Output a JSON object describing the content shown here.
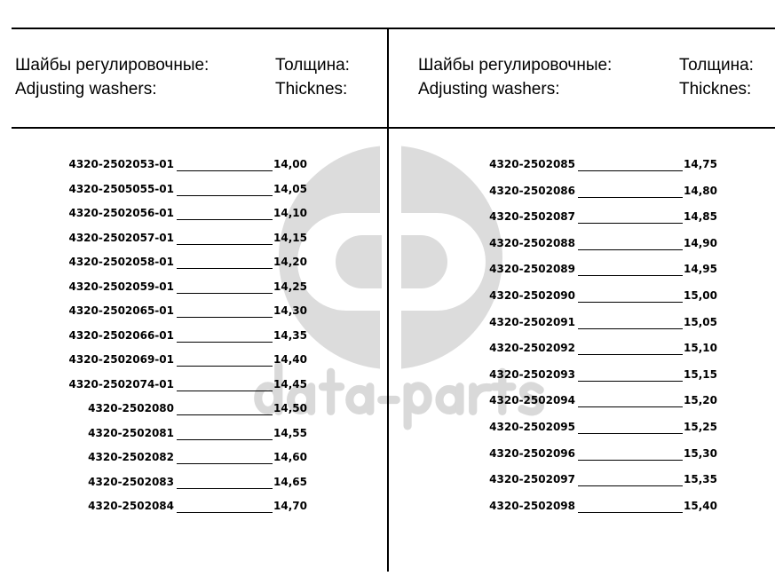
{
  "watermark": {
    "text": "data-parts",
    "color": "#d9d9d9"
  },
  "left": {
    "title_ru": "Шайбы регулировочные:",
    "title_en": "Adjusting washers:",
    "thick_ru": "Толщина:",
    "thick_en": "Thicknes:",
    "rows": [
      {
        "part": "4320-2502053-01",
        "value": "14,00"
      },
      {
        "part": "4320-2505055-01",
        "value": "14,05"
      },
      {
        "part": "4320-2502056-01",
        "value": "14,10"
      },
      {
        "part": "4320-2502057-01",
        "value": "14,15"
      },
      {
        "part": "4320-2502058-01",
        "value": "14,20"
      },
      {
        "part": "4320-2502059-01",
        "value": "14,25"
      },
      {
        "part": "4320-2502065-01",
        "value": "14,30"
      },
      {
        "part": "4320-2502066-01",
        "value": "14,35"
      },
      {
        "part": "4320-2502069-01",
        "value": "14,40"
      },
      {
        "part": "4320-2502074-01",
        "value": "14,45"
      },
      {
        "part": "4320-2502080",
        "value": "14,50"
      },
      {
        "part": "4320-2502081",
        "value": "14,55"
      },
      {
        "part": "4320-2502082",
        "value": "14,60"
      },
      {
        "part": "4320-2502083",
        "value": "14,65"
      },
      {
        "part": "4320-2502084",
        "value": "14,70"
      }
    ]
  },
  "right": {
    "title_ru": "Шайбы регулировочные:",
    "title_en": "Adjusting washers:",
    "thick_ru": "Толщина:",
    "thick_en": "Thicknes:",
    "rows": [
      {
        "part": "4320-2502085",
        "value": "14,75"
      },
      {
        "part": "4320-2502086",
        "value": "14,80"
      },
      {
        "part": "4320-2502087",
        "value": "14,85"
      },
      {
        "part": "4320-2502088",
        "value": "14,90"
      },
      {
        "part": "4320-2502089",
        "value": "14,95"
      },
      {
        "part": "4320-2502090",
        "value": "15,00"
      },
      {
        "part": "4320-2502091",
        "value": "15,05"
      },
      {
        "part": "4320-2502092",
        "value": "15,10"
      },
      {
        "part": "4320-2502093",
        "value": "15,15"
      },
      {
        "part": "4320-2502094",
        "value": "15,20"
      },
      {
        "part": "4320-2502095",
        "value": "15,25"
      },
      {
        "part": "4320-2502096",
        "value": "15,30"
      },
      {
        "part": "4320-2502097",
        "value": "15,35"
      },
      {
        "part": "4320-2502098",
        "value": "15,40"
      }
    ]
  }
}
